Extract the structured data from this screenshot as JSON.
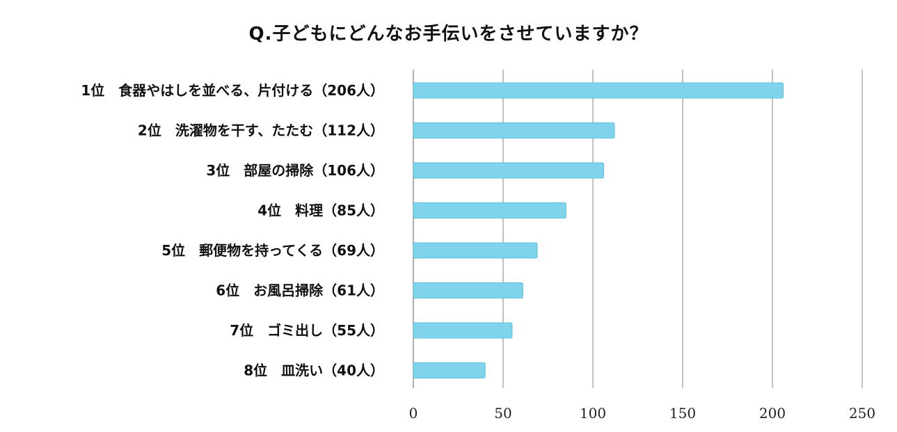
{
  "chart_data": {
    "type": "bar",
    "orientation": "horizontal",
    "title": "Q.子どもにどんなお手伝いをさせていますか？",
    "categories": [
      "1位　食器やはしを並べる、片付ける（206人）",
      "2位　洗濯物を干す、たたむ（112人）",
      "3位　部屋の掃除（106人）",
      "4位　料理（85人）",
      "5位　郵便物を持ってくる（69人）",
      "6位　お風呂掃除（61人）",
      "7位　ゴミ出し（55人）",
      "8位　皿洗い（40人）"
    ],
    "values": [
      206,
      112,
      106,
      85,
      69,
      61,
      55,
      40
    ],
    "xlim": [
      0,
      250
    ],
    "x_ticks": [
      0,
      50,
      100,
      150,
      200,
      250
    ],
    "x_tick_labels": [
      "0",
      "50",
      "100",
      "150",
      "200",
      "250"
    ],
    "xlabel": "",
    "ylabel": "",
    "grid": true,
    "legend": "none",
    "bar_color": "#7fd3ea",
    "bar_edge_color": "#5cbfdc",
    "grid_color": "#999999"
  }
}
